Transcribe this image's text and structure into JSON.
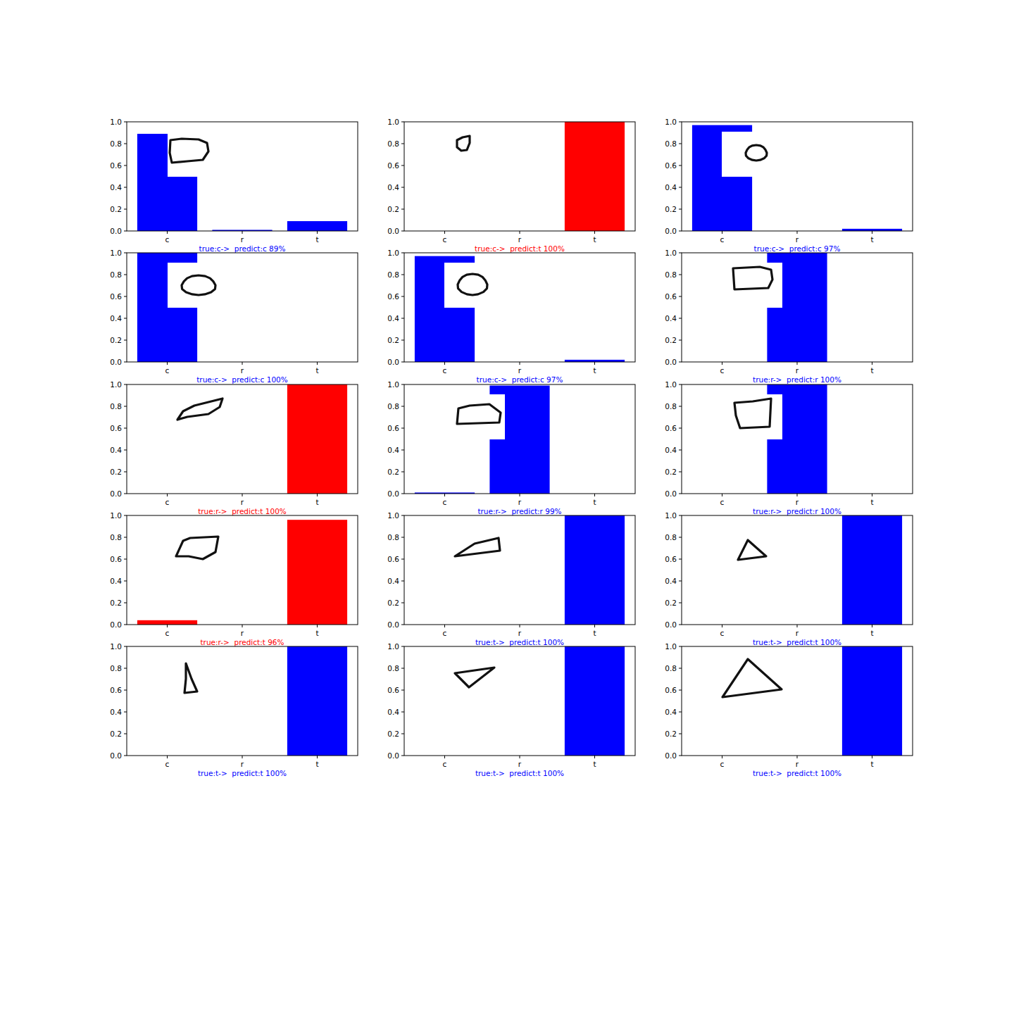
{
  "chart_data": [
    {
      "type": "bar",
      "categories": [
        "c",
        "r",
        "t"
      ],
      "values": [
        0.89,
        0.01,
        0.09
      ],
      "color": "blue",
      "ylim": [
        0,
        1
      ],
      "yticks": [
        {
          "value": 0,
          "label": "0.0"
        },
        0.2,
        0.4,
        0.6,
        0.8,
        {
          "value": 1,
          "label": "1.0"
        }
      ],
      "xlabel": "true:c->  predict:c 89%"
    },
    {
      "type": "bar",
      "categories": [
        "c",
        "r",
        "t"
      ],
      "values": [
        0,
        0,
        1
      ],
      "color": "red",
      "ylim": [
        0,
        1
      ],
      "yticks": [
        {
          "value": 0,
          "label": "0.0"
        },
        0.2,
        0.4,
        0.6,
        0.8,
        {
          "value": 1,
          "label": "1.0"
        }
      ],
      "xlabel": "true:c->  predict:t 100%"
    },
    {
      "type": "bar",
      "categories": [
        "c",
        "r",
        "t"
      ],
      "values": [
        0.97,
        0,
        0.02
      ],
      "color": "blue",
      "ylim": [
        0,
        1
      ],
      "yticks": [
        {
          "value": 0,
          "label": "0.0"
        },
        0.2,
        0.4,
        0.6,
        0.8,
        {
          "value": 1,
          "label": "1.0"
        }
      ],
      "xlabel": "true:c->  predict:c 97%"
    },
    {
      "type": "bar",
      "categories": [
        "c",
        "r",
        "t"
      ],
      "values": [
        1,
        0,
        0
      ],
      "color": "blue",
      "ylim": [
        0,
        1
      ],
      "yticks": [
        {
          "value": 0,
          "label": "0.0"
        },
        0.2,
        0.4,
        0.6,
        0.8,
        {
          "value": 1,
          "label": "1.0"
        }
      ],
      "xlabel": "true:c->  predict:c 100%"
    },
    {
      "type": "bar",
      "categories": [
        "c",
        "r",
        "t"
      ],
      "values": [
        0.97,
        0,
        0.02
      ],
      "color": "blue",
      "ylim": [
        0,
        1
      ],
      "yticks": [
        {
          "value": 0,
          "label": "0.0"
        },
        0.2,
        0.4,
        0.6,
        0.8,
        {
          "value": 1,
          "label": "1.0"
        }
      ],
      "xlabel": "true:c->  predict:c 97%"
    },
    {
      "type": "bar",
      "categories": [
        "c",
        "r",
        "t"
      ],
      "values": [
        0,
        1,
        0
      ],
      "color": "blue",
      "ylim": [
        0,
        1
      ],
      "yticks": [
        {
          "value": 0,
          "label": "0.0"
        },
        0.2,
        0.4,
        0.6,
        0.8,
        {
          "value": 1,
          "label": "1.0"
        }
      ],
      "xlabel": "true:r->  predict:r 100%"
    },
    {
      "type": "bar",
      "categories": [
        "c",
        "r",
        "t"
      ],
      "values": [
        0,
        0,
        1
      ],
      "color": "red",
      "ylim": [
        0,
        1
      ],
      "yticks": [
        {
          "value": 0,
          "label": "0.0"
        },
        0.2,
        0.4,
        0.6,
        0.8,
        {
          "value": 1,
          "label": "1.0"
        }
      ],
      "xlabel": "true:r->  predict:t 100%"
    },
    {
      "type": "bar",
      "categories": [
        "c",
        "r",
        "t"
      ],
      "values": [
        0.01,
        0.99,
        0
      ],
      "color": "blue",
      "ylim": [
        0,
        1
      ],
      "yticks": [
        {
          "value": 0,
          "label": "0.0"
        },
        0.2,
        0.4,
        0.6,
        0.8,
        {
          "value": 1,
          "label": "1.0"
        }
      ],
      "xlabel": "true:r->  predict:r 99%"
    },
    {
      "type": "bar",
      "categories": [
        "c",
        "r",
        "t"
      ],
      "values": [
        0,
        1,
        0
      ],
      "color": "blue",
      "ylim": [
        0,
        1
      ],
      "yticks": [
        {
          "value": 0,
          "label": "0.0"
        },
        0.2,
        0.4,
        0.6,
        0.8,
        {
          "value": 1,
          "label": "1.0"
        }
      ],
      "xlabel": "true:r->  predict:r 100%"
    },
    {
      "type": "bar",
      "categories": [
        "c",
        "r",
        "t"
      ],
      "values": [
        0.04,
        0,
        0.96
      ],
      "color": "red",
      "ylim": [
        0,
        1
      ],
      "yticks": [
        {
          "value": 0,
          "label": "0.0"
        },
        0.2,
        0.4,
        0.6,
        0.8,
        {
          "value": 1,
          "label": "1.0"
        }
      ],
      "xlabel": "true:r->  predict:t 96%"
    },
    {
      "type": "bar",
      "categories": [
        "c",
        "r",
        "t"
      ],
      "values": [
        0,
        0,
        1
      ],
      "color": "blue",
      "ylim": [
        0,
        1
      ],
      "yticks": [
        {
          "value": 0,
          "label": "0.0"
        },
        0.2,
        0.4,
        0.6,
        0.8,
        {
          "value": 1,
          "label": "1.0"
        }
      ],
      "xlabel": "true:t->  predict:t 100%"
    },
    {
      "type": "bar",
      "categories": [
        "c",
        "r",
        "t"
      ],
      "values": [
        0,
        0,
        1
      ],
      "color": "blue",
      "ylim": [
        0,
        1
      ],
      "yticks": [
        {
          "value": 0,
          "label": "0.0"
        },
        0.2,
        0.4,
        0.6,
        0.8,
        {
          "value": 1,
          "label": "1.0"
        }
      ],
      "xlabel": "true:t->  predict:t 100%"
    },
    {
      "type": "bar",
      "categories": [
        "c",
        "r",
        "t"
      ],
      "values": [
        0,
        0,
        1
      ],
      "color": "blue",
      "ylim": [
        0,
        1
      ],
      "yticks": [
        {
          "value": 0,
          "label": "0.0"
        },
        0.2,
        0.4,
        0.6,
        0.8,
        {
          "value": 1,
          "label": "1.0"
        }
      ],
      "xlabel": "true:t->  predict:t 100%"
    },
    {
      "type": "bar",
      "categories": [
        "c",
        "r",
        "t"
      ],
      "values": [
        0,
        0,
        1
      ],
      "color": "blue",
      "ylim": [
        0,
        1
      ],
      "yticks": [
        {
          "value": 0,
          "label": "0.0"
        },
        0.2,
        0.4,
        0.6,
        0.8,
        {
          "value": 1,
          "label": "1.0"
        }
      ],
      "xlabel": "true:t->  predict:t 100%"
    },
    {
      "type": "bar",
      "categories": [
        "c",
        "r",
        "t"
      ],
      "values": [
        0,
        0,
        1
      ],
      "color": "blue",
      "ylim": [
        0,
        1
      ],
      "yticks": [
        {
          "value": 0,
          "label": "0.0"
        },
        0.2,
        0.4,
        0.6,
        0.8,
        {
          "value": 1,
          "label": "1.0"
        }
      ],
      "xlabel": "true:t->  predict:t 100%"
    }
  ]
}
